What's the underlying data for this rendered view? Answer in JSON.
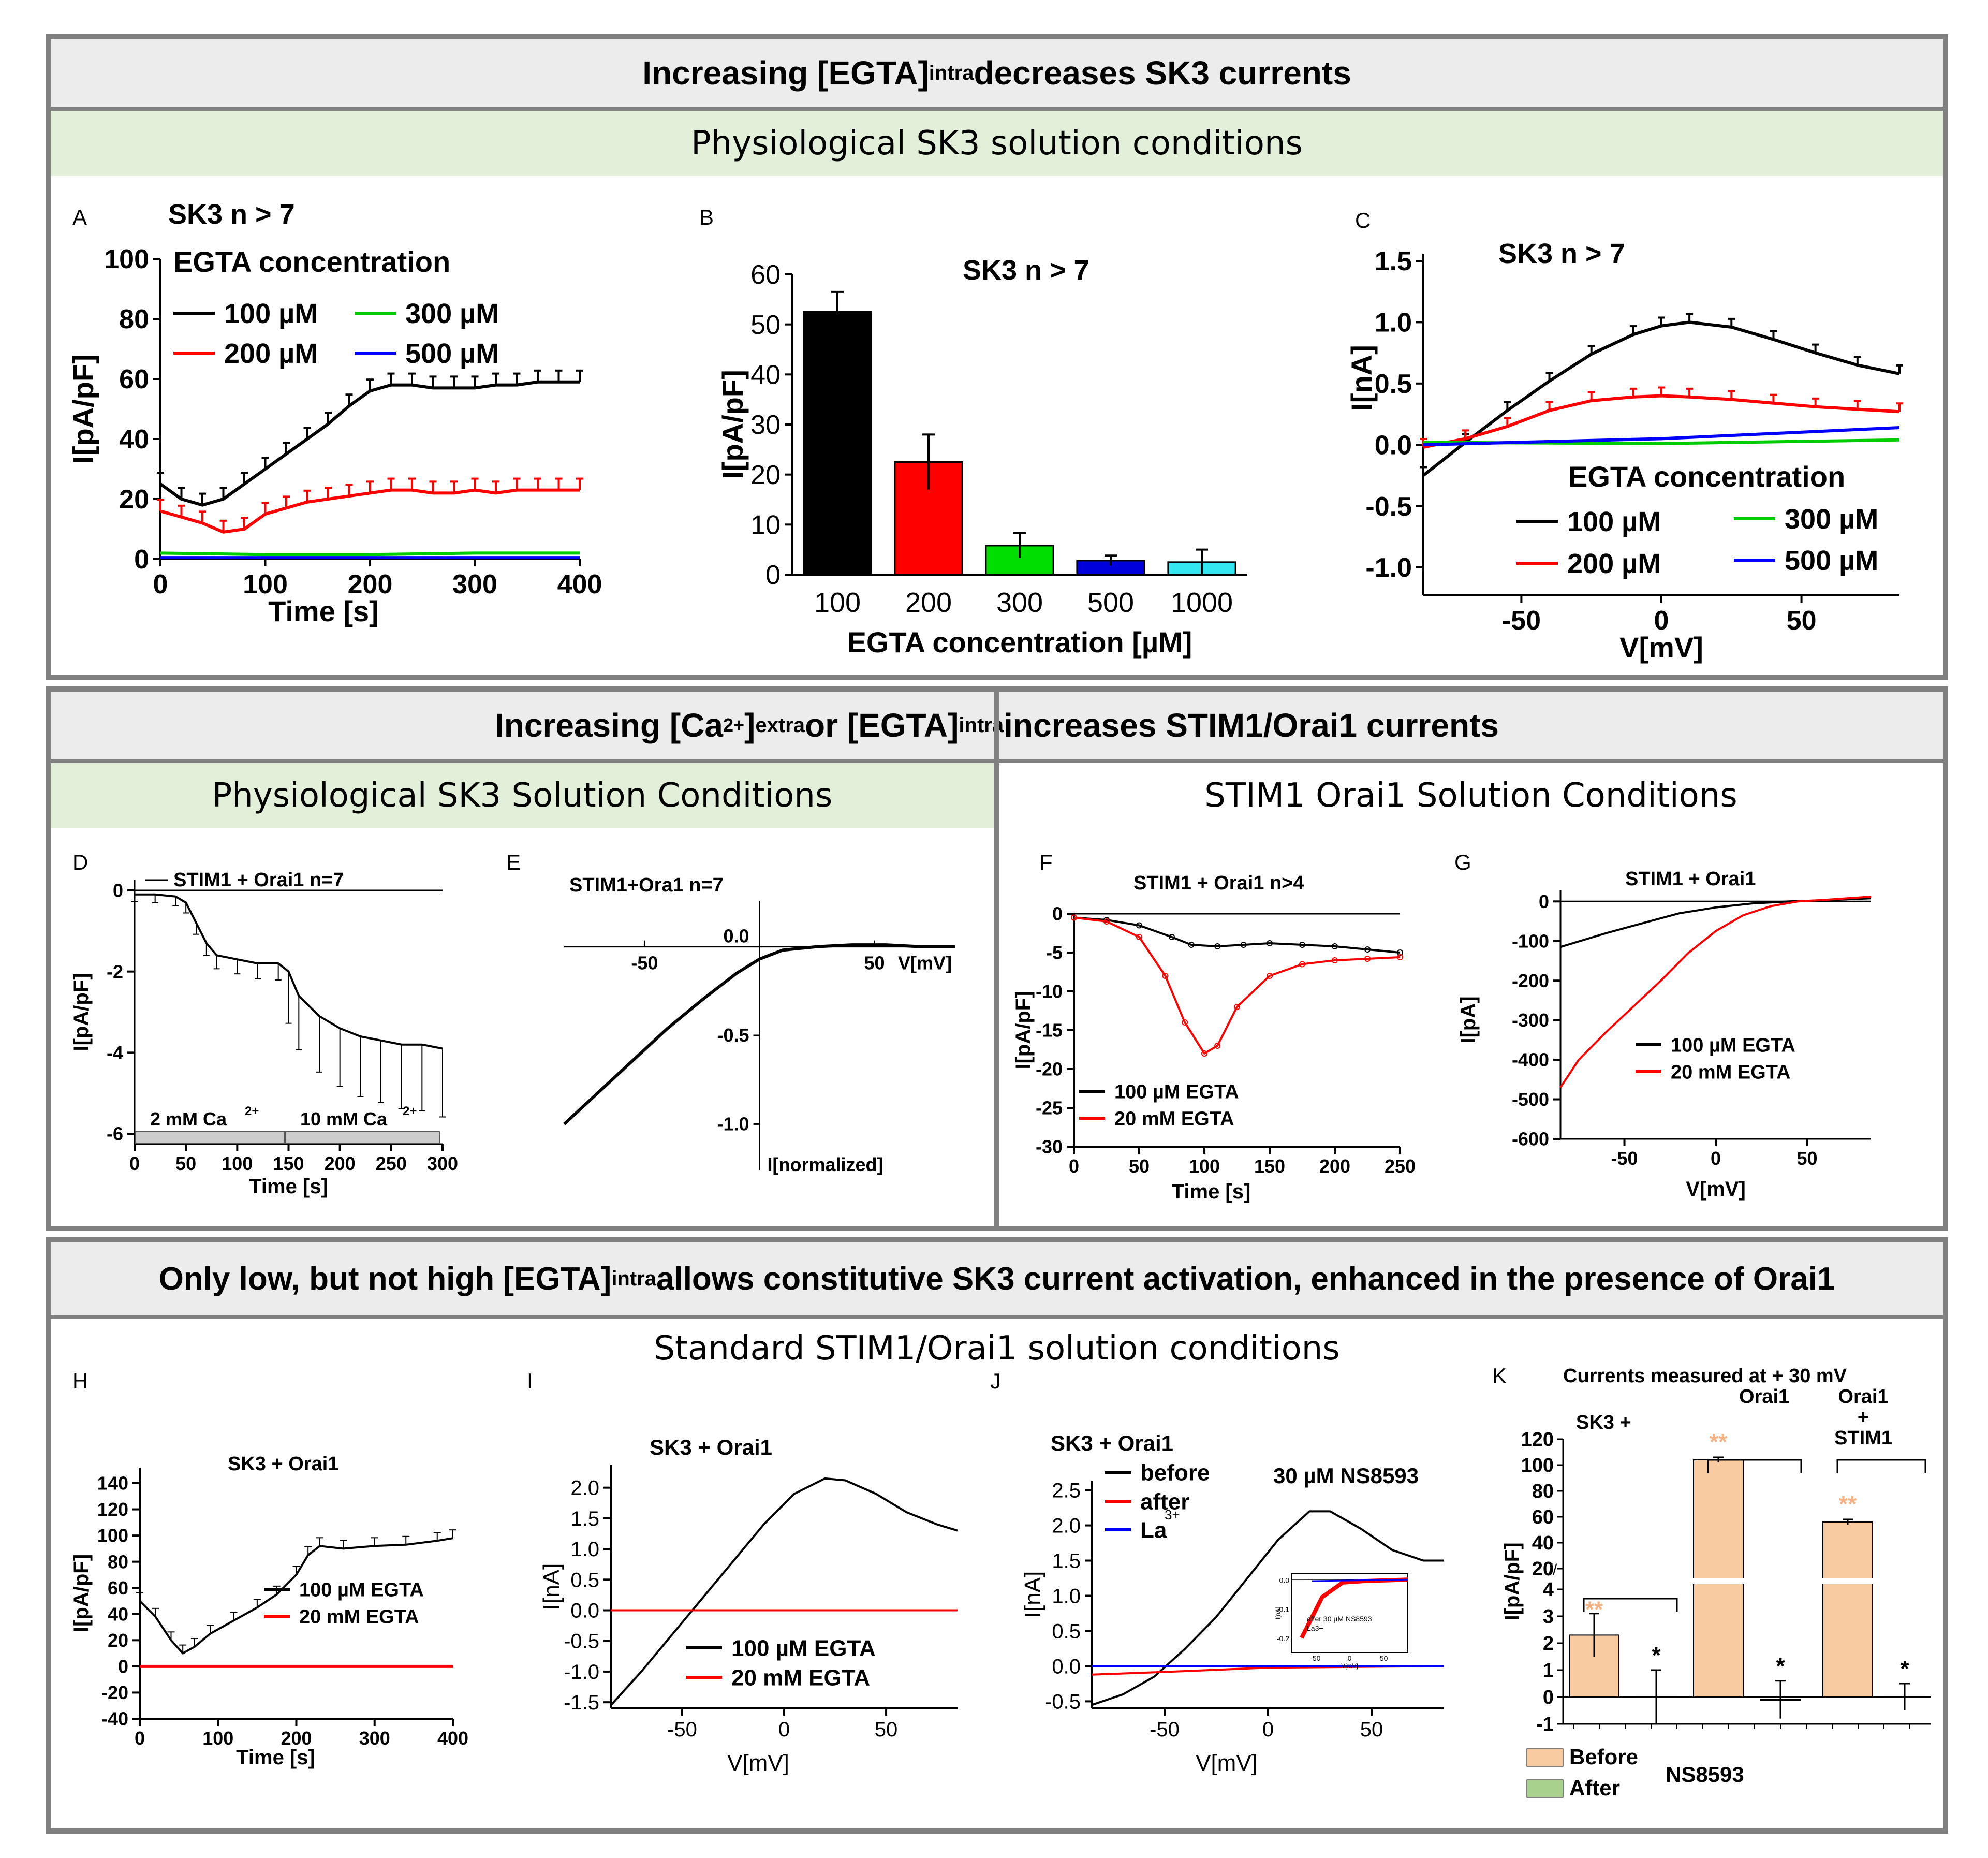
{
  "sections": {
    "s1": {
      "title": "Increasing [EGTA]",
      "title_sub": "intra",
      "title_rest": " decreases SK3 currents",
      "subtitle": "Physiological SK3 solution conditions"
    },
    "s2": {
      "title_a": "Increasing [Ca",
      "title_sup": "2+",
      "title_b": "]",
      "title_sub1": "extra",
      "title_c": " or [EGTA]",
      "title_sub2": "intra",
      "title_d": " increases STIM1/Orai1 currents",
      "left_subtitle": "Physiological SK3 Solution Conditions",
      "right_subtitle": "STIM1 Orai1 Solution Conditions"
    },
    "s3": {
      "title_a": "Only low, but not high [EGTA]",
      "title_sub": "intra",
      "title_b": " allows constitutive SK3 current activation, enhanced in the presence of Orai1",
      "subtitle": "Standard STIM1/Orai1 solution conditions"
    }
  },
  "panel_letters": {
    "A": "A",
    "B": "B",
    "C": "C",
    "D": "D",
    "E": "E",
    "F": "F",
    "G": "G",
    "H": "H",
    "I": "I",
    "J": "J",
    "K": "K"
  },
  "chart_data": [
    {
      "id": "A",
      "type": "line",
      "title": "SK3 n > 7",
      "legend_title": "EGTA concentration",
      "xlabel": "Time [s]",
      "ylabel": "I[pA/pF]",
      "xlim": [
        0,
        400
      ],
      "ylim": [
        0,
        100
      ],
      "xticks": [
        "0",
        "100",
        "200",
        "300",
        "400"
      ],
      "yticks": [
        "0",
        "20",
        "40",
        "60",
        "80",
        "100"
      ],
      "series": [
        {
          "name": "100 µM",
          "color": "#000000",
          "x": [
            0,
            20,
            40,
            60,
            80,
            100,
            120,
            140,
            160,
            180,
            200,
            220,
            240,
            260,
            280,
            300,
            320,
            340,
            360,
            380,
            400
          ],
          "y": [
            25,
            20,
            18,
            20,
            25,
            30,
            35,
            40,
            45,
            51,
            56,
            58,
            58,
            57,
            57,
            57,
            58,
            58,
            59,
            59,
            59
          ]
        },
        {
          "name": "200 µM",
          "color": "#ff0000",
          "x": [
            0,
            20,
            40,
            60,
            80,
            100,
            120,
            140,
            160,
            180,
            200,
            220,
            240,
            260,
            280,
            300,
            320,
            340,
            360,
            380,
            400
          ],
          "y": [
            16,
            14,
            12,
            9,
            10,
            15,
            17,
            19,
            20,
            21,
            22,
            23,
            23,
            22,
            22,
            23,
            22,
            23,
            23,
            23,
            23
          ]
        },
        {
          "name": "300 µM",
          "color": "#00cc00",
          "x": [
            0,
            100,
            200,
            300,
            400
          ],
          "y": [
            2,
            1.5,
            1.5,
            2,
            2
          ]
        },
        {
          "name": "500 µM",
          "color": "#0000ff",
          "x": [
            0,
            100,
            200,
            300,
            400
          ],
          "y": [
            0.5,
            0.5,
            0.5,
            0.5,
            0.5
          ]
        }
      ]
    },
    {
      "id": "B",
      "type": "bar",
      "title": "SK3 n > 7",
      "xlabel": "EGTA concentration [µM]",
      "ylabel": "I[pA/pF]",
      "ylim": [
        0,
        60
      ],
      "yticks": [
        "0",
        "10",
        "20",
        "30",
        "40",
        "50",
        "60"
      ],
      "categories": [
        "100",
        "200",
        "300",
        "500",
        "1000"
      ],
      "values": [
        52.5,
        22.5,
        5.8,
        2.8,
        2.5
      ],
      "errors": [
        4,
        5.5,
        2.5,
        1,
        2.5
      ],
      "colors": [
        "#000000",
        "#ff0000",
        "#00dd00",
        "#0000dd",
        "#33e6ef"
      ]
    },
    {
      "id": "C",
      "type": "line",
      "title": "SK3 n > 7",
      "legend_title": "EGTA concentration",
      "xlabel": "V[mV]",
      "ylabel": "I[nA]",
      "xlim": [
        -85,
        85
      ],
      "ylim": [
        -1.0,
        1.5
      ],
      "xticks": [
        "-50",
        "0",
        "50"
      ],
      "yticks": [
        "-1.0",
        "-0.5",
        "0.0",
        "0.5",
        "1.0",
        "1.5"
      ],
      "series": [
        {
          "name": "100 µM",
          "color": "#000000",
          "x": [
            -85,
            -70,
            -55,
            -40,
            -25,
            -10,
            0,
            10,
            25,
            40,
            55,
            70,
            85
          ],
          "y": [
            -0.25,
            0.02,
            0.28,
            0.52,
            0.74,
            0.9,
            0.97,
            1.0,
            0.96,
            0.86,
            0.75,
            0.65,
            0.58
          ]
        },
        {
          "name": "200 µM",
          "color": "#ff0000",
          "x": [
            -85,
            -70,
            -55,
            -40,
            -25,
            -10,
            0,
            10,
            25,
            40,
            55,
            70,
            85
          ],
          "y": [
            -0.02,
            0.05,
            0.15,
            0.28,
            0.36,
            0.39,
            0.4,
            0.39,
            0.37,
            0.34,
            0.31,
            0.29,
            0.27
          ]
        },
        {
          "name": "300 µM",
          "color": "#00cc00",
          "x": [
            -85,
            0,
            85
          ],
          "y": [
            0.02,
            0.01,
            0.04
          ]
        },
        {
          "name": "500 µM",
          "color": "#0000ff",
          "x": [
            -85,
            0,
            85
          ],
          "y": [
            0.0,
            0.05,
            0.14
          ]
        }
      ]
    },
    {
      "id": "D",
      "type": "line",
      "title": "STIM1 + Orai1 n=7",
      "xlabel": "Time [s]",
      "ylabel": "I[pA/pF]",
      "xlim": [
        0,
        300
      ],
      "ylim": [
        -6,
        0
      ],
      "xticks": [
        "0",
        "50",
        "100",
        "150",
        "200",
        "250",
        "300"
      ],
      "yticks": [
        "-6",
        "-4",
        "-2",
        "0"
      ],
      "annotations": [
        "2 mM Ca",
        "10 mM Ca",
        "2+"
      ],
      "series": [
        {
          "name": "STIM1 + Orai1",
          "color": "#000000",
          "x": [
            0,
            20,
            40,
            50,
            60,
            70,
            80,
            100,
            120,
            140,
            150,
            160,
            180,
            200,
            220,
            240,
            260,
            280,
            300
          ],
          "y": [
            -0.1,
            -0.1,
            -0.15,
            -0.3,
            -0.8,
            -1.3,
            -1.6,
            -1.7,
            -1.8,
            -1.8,
            -2.0,
            -2.6,
            -3.1,
            -3.4,
            -3.6,
            -3.7,
            -3.8,
            -3.8,
            -3.9
          ]
        }
      ]
    },
    {
      "id": "E",
      "type": "line",
      "title": "STIM1+Ora1 n=7",
      "xlabel": "V[mV]",
      "ylabel": "I[normalized]",
      "xlim": [
        -85,
        85
      ],
      "ylim": [
        -1.2,
        0.2
      ],
      "xticks": [
        "-50",
        "50"
      ],
      "yticks": [
        "-1.0",
        "-0.5",
        "0.0"
      ],
      "series": [
        {
          "name": "STIM1+Orai1",
          "color": "#000000",
          "x": [
            -85,
            -70,
            -55,
            -40,
            -25,
            -10,
            0,
            10,
            25,
            40,
            55,
            70,
            85
          ],
          "y": [
            -1.0,
            -0.82,
            -0.64,
            -0.46,
            -0.3,
            -0.15,
            -0.07,
            -0.02,
            0.0,
            0.01,
            0.01,
            0.0,
            0.0
          ]
        }
      ]
    },
    {
      "id": "F",
      "type": "line",
      "title": "STIM1 + Orai1 n>4",
      "xlabel": "Time [s]",
      "ylabel": "I[pA/pF]",
      "xlim": [
        0,
        250
      ],
      "ylim": [
        -30,
        0
      ],
      "xticks": [
        "0",
        "50",
        "100",
        "150",
        "200",
        "250"
      ],
      "yticks": [
        "-30",
        "-25",
        "-20",
        "-15",
        "-10",
        "-5",
        "0"
      ],
      "series": [
        {
          "name": "100 µM EGTA",
          "color": "#000000",
          "x": [
            0,
            25,
            50,
            75,
            90,
            110,
            130,
            150,
            175,
            200,
            225,
            250
          ],
          "y": [
            -0.5,
            -0.8,
            -1.5,
            -3.0,
            -4.0,
            -4.2,
            -4.0,
            -3.8,
            -4.0,
            -4.2,
            -4.6,
            -5.0
          ]
        },
        {
          "name": "20 mM EGTA",
          "color": "#ff0000",
          "x": [
            0,
            25,
            50,
            70,
            85,
            100,
            110,
            125,
            150,
            175,
            200,
            225,
            250
          ],
          "y": [
            -0.5,
            -1.0,
            -3.0,
            -8.0,
            -14.0,
            -18.0,
            -17.0,
            -12.0,
            -8.0,
            -6.5,
            -6.0,
            -5.8,
            -5.6
          ]
        }
      ]
    },
    {
      "id": "G",
      "type": "line",
      "title": "STIM1 + Orai1",
      "xlabel": "V[mV]",
      "ylabel": "I[pA]",
      "xlim": [
        -85,
        85
      ],
      "ylim": [
        -600,
        20
      ],
      "xticks": [
        "-50",
        "0",
        "50"
      ],
      "yticks": [
        "-600",
        "-500",
        "-400",
        "-300",
        "-200",
        "-100",
        "0"
      ],
      "series": [
        {
          "name": "100 µM EGTA",
          "color": "#000000",
          "x": [
            -85,
            -60,
            -40,
            -20,
            0,
            20,
            40,
            60,
            85
          ],
          "y": [
            -115,
            -80,
            -55,
            -30,
            -15,
            -5,
            0,
            3,
            8
          ]
        },
        {
          "name": "20 mM EGTA",
          "color": "#ff0000",
          "x": [
            -85,
            -75,
            -60,
            -45,
            -30,
            -15,
            0,
            15,
            30,
            45,
            60,
            85
          ],
          "y": [
            -470,
            -400,
            -330,
            -265,
            -200,
            -130,
            -75,
            -35,
            -12,
            0,
            4,
            12
          ]
        }
      ]
    },
    {
      "id": "H",
      "type": "line",
      "title": "SK3 + Orai1",
      "xlabel": "Time [s]",
      "ylabel": "I[pA/pF]",
      "xlim": [
        0,
        400
      ],
      "ylim": [
        -40,
        140
      ],
      "xticks": [
        "0",
        "100",
        "200",
        "300",
        "400"
      ],
      "yticks": [
        "-40",
        "-20",
        "0",
        "20",
        "40",
        "60",
        "80",
        "100",
        "120",
        "140"
      ],
      "series": [
        {
          "name": "100 µM EGTA",
          "color": "#000000",
          "x": [
            0,
            20,
            40,
            55,
            70,
            90,
            120,
            150,
            175,
            200,
            215,
            230,
            260,
            300,
            340,
            380,
            400
          ],
          "y": [
            50,
            38,
            20,
            10,
            15,
            25,
            35,
            45,
            55,
            70,
            85,
            92,
            90,
            92,
            93,
            96,
            98
          ]
        },
        {
          "name": "20 mM EGTA",
          "color": "#ff0000",
          "x": [
            0,
            400
          ],
          "y": [
            0,
            0
          ]
        }
      ]
    },
    {
      "id": "I",
      "type": "line",
      "title": "SK3 + Orai1",
      "xlabel": "V[mV]",
      "ylabel": "I[nA]",
      "xlim": [
        -85,
        85
      ],
      "ylim": [
        -1.6,
        2.2
      ],
      "xticks": [
        "-50",
        "0",
        "50"
      ],
      "yticks": [
        "-1.5",
        "-1.0",
        "-0.5",
        "0.0",
        "0.5",
        "1.0",
        "1.5",
        "2.0"
      ],
      "series": [
        {
          "name": "100 µM EGTA",
          "color": "#000000",
          "x": [
            -85,
            -70,
            -55,
            -40,
            -25,
            -10,
            5,
            20,
            30,
            45,
            60,
            75,
            85
          ],
          "y": [
            -1.55,
            -1.0,
            -0.4,
            0.2,
            0.8,
            1.4,
            1.9,
            2.15,
            2.12,
            1.9,
            1.6,
            1.4,
            1.3
          ]
        },
        {
          "name": "20 mM EGTA",
          "color": "#ff0000",
          "x": [
            -85,
            85
          ],
          "y": [
            0,
            0
          ]
        }
      ]
    },
    {
      "id": "J",
      "type": "line",
      "title": "SK3 + Orai1",
      "annotation": "30 µM NS8593",
      "xlabel": "V[mV]",
      "ylabel": "I[nA]",
      "xlim": [
        -85,
        85
      ],
      "ylim": [
        -0.6,
        2.6
      ],
      "xticks": [
        "-50",
        "0",
        "50"
      ],
      "yticks": [
        "-0.5",
        "0.0",
        "0.5",
        "1.0",
        "1.5",
        "2.0",
        "2.5"
      ],
      "series": [
        {
          "name": "before",
          "color": "#000000",
          "x": [
            -85,
            -70,
            -55,
            -40,
            -25,
            -10,
            5,
            20,
            30,
            45,
            60,
            75,
            85
          ],
          "y": [
            -0.55,
            -0.4,
            -0.15,
            0.25,
            0.7,
            1.25,
            1.8,
            2.2,
            2.2,
            1.95,
            1.65,
            1.5,
            1.5
          ]
        },
        {
          "name": "after",
          "color": "#ff0000",
          "x": [
            -85,
            -40,
            0,
            85
          ],
          "y": [
            -0.12,
            -0.07,
            -0.02,
            0.0
          ]
        },
        {
          "name": "La3+",
          "color": "#0000ff",
          "x": [
            -85,
            85
          ],
          "y": [
            0,
            0
          ]
        }
      ],
      "inset": {
        "legend": [
          "after 30 µM NS8593",
          "La3+"
        ],
        "ylabel": "I[nA]",
        "xlabel": "V[mV]",
        "yticks": [
          "0.0",
          "-0.1",
          "-0.2"
        ],
        "xticks": [
          "-50",
          "0",
          "50"
        ]
      }
    },
    {
      "id": "K",
      "type": "bar",
      "title": "Currents measured at + 30 mV",
      "ylabel": "I[pA/pF]",
      "groups": [
        "SK3 +",
        "Orai1",
        "Orai1 + STIM1"
      ],
      "legend": [
        "Before",
        "After"
      ],
      "legend_note": "NS8593",
      "yticks_low": [
        "-1",
        "0",
        "1",
        "2",
        "3",
        "4"
      ],
      "yticks_high": [
        "20",
        "40",
        "60",
        "80",
        "100",
        "120"
      ],
      "series": [
        {
          "name": "Before",
          "color": "#f8cba0",
          "values": [
            2.3,
            104,
            56
          ],
          "errors": [
            0.8,
            2,
            2
          ]
        },
        {
          "name": "After",
          "color": "#a9d18e",
          "values": [
            0.0,
            -0.1,
            0.0
          ],
          "errors": [
            1.0,
            0.7,
            0.5
          ]
        }
      ],
      "significance_before": [
        "**",
        "**",
        "**"
      ],
      "significance_after": [
        "*",
        "*",
        "*"
      ]
    }
  ]
}
